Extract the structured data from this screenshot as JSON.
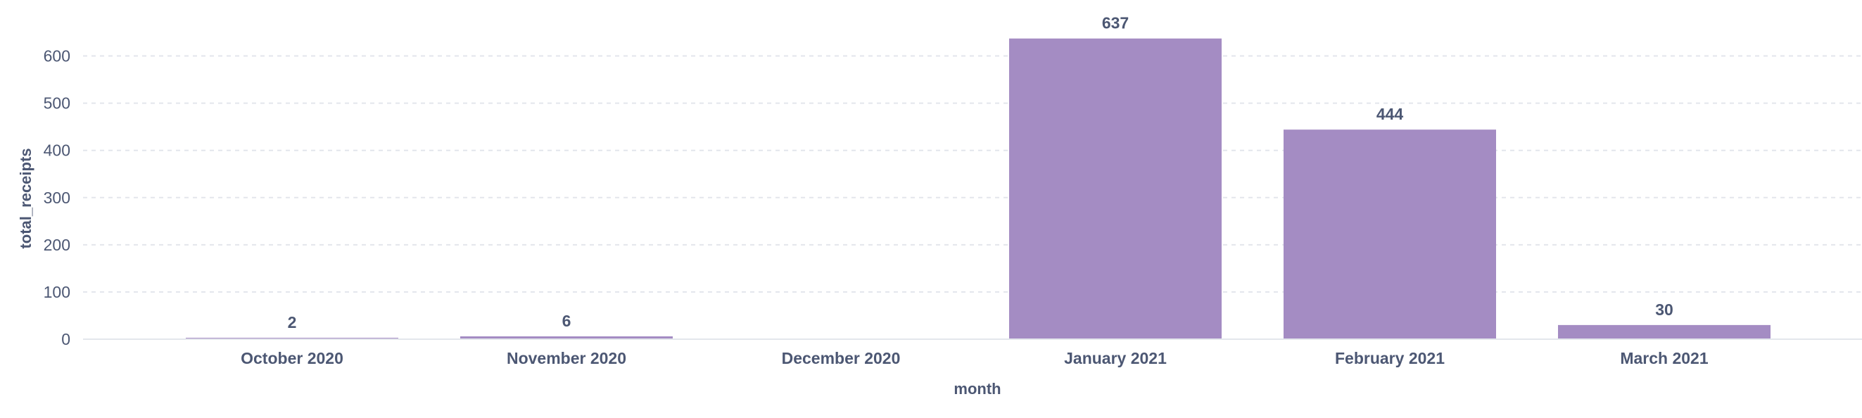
{
  "chart_data": {
    "type": "bar",
    "categories": [
      "October 2020",
      "November 2020",
      "December 2020",
      "January 2021",
      "February 2021",
      "March 2021"
    ],
    "values": [
      2,
      6,
      0,
      637,
      444,
      30
    ],
    "data_labels": [
      "2",
      "6",
      "",
      "637",
      "444",
      "30"
    ],
    "xlabel": "month",
    "ylabel": "total_receipts",
    "ylim": [
      0,
      650
    ],
    "yticks": [
      0,
      100,
      200,
      300,
      400,
      500,
      600
    ],
    "ytick_labels": [
      "0",
      "100",
      "200",
      "300",
      "400",
      "500",
      "600"
    ],
    "grid": true,
    "bar_color": "#a48cc3",
    "text_color": "#4c5773",
    "grid_color": "#e3e6ec"
  }
}
